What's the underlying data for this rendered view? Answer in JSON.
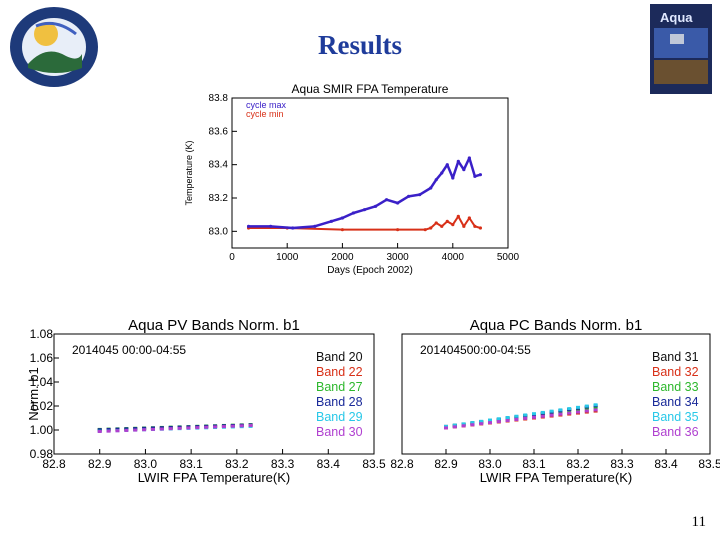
{
  "slide": {
    "title": "Results",
    "page_number": "11"
  },
  "logos": {
    "right_label": "Aqua"
  },
  "colors": {
    "blue": "#2a2ad0",
    "red": "#d83018",
    "green": "#2db82d",
    "navy": "#1a2a99",
    "cyan": "#28c8e8",
    "purple": "#b040d0",
    "title_blue": "#1f3c9b"
  },
  "chart_data": [
    {
      "type": "line",
      "title": "Aqua SMIR FPA Temperature",
      "xlabel": "Days (Epoch 2002)",
      "ylabel": "Temperature (K)",
      "xlim": [
        0,
        5000
      ],
      "ylim": [
        82.9,
        83.8
      ],
      "xticks": [
        "0",
        "1000",
        "2000",
        "3000",
        "4000",
        "5000"
      ],
      "yticks": [
        "83.0",
        "83.2",
        "83.4",
        "83.6",
        "83.8"
      ],
      "legend": [
        "cycle max",
        "cycle min"
      ],
      "series": [
        {
          "name": "cycle max",
          "color": "#3a20c8",
          "x": [
            300,
            700,
            1100,
            1500,
            1800,
            2000,
            2200,
            2400,
            2600,
            2800,
            3000,
            3200,
            3400,
            3600,
            3700,
            3800,
            3900,
            4000,
            4100,
            4200,
            4300,
            4400,
            4500
          ],
          "y": [
            83.03,
            83.03,
            83.02,
            83.03,
            83.06,
            83.08,
            83.11,
            83.13,
            83.15,
            83.19,
            83.17,
            83.21,
            83.22,
            83.26,
            83.31,
            83.35,
            83.4,
            83.32,
            83.42,
            83.37,
            83.44,
            83.33,
            83.34
          ]
        },
        {
          "name": "cycle min",
          "color": "#d83018",
          "x": [
            300,
            1000,
            2000,
            3000,
            3500,
            3600,
            3700,
            3800,
            3900,
            4000,
            4100,
            4200,
            4300,
            4400,
            4500
          ],
          "y": [
            83.02,
            83.02,
            83.01,
            83.01,
            83.01,
            83.02,
            83.05,
            83.03,
            83.06,
            83.04,
            83.09,
            83.03,
            83.08,
            83.03,
            83.02
          ]
        }
      ]
    },
    {
      "type": "scatter",
      "title": "Aqua PV Bands Norm. b1",
      "annotation": "2014045 00:00-04:55",
      "xlabel": "LWIR FPA Temperature(K)",
      "ylabel": "Norm. b1",
      "xlim": [
        82.8,
        83.5
      ],
      "ylim": [
        0.98,
        1.08
      ],
      "xticks": [
        "82.8",
        "82.9",
        "83.0",
        "83.1",
        "83.2",
        "83.3",
        "83.4",
        "83.5"
      ],
      "yticks": [
        "0.98",
        "1.00",
        "1.02",
        "1.04",
        "1.06",
        "1.08"
      ],
      "x_range": [
        82.9,
        83.23
      ],
      "series": [
        {
          "name": "Band 20",
          "color": "#111111",
          "y_start": 1.0,
          "y_end": 1.004
        },
        {
          "name": "Band 22",
          "color": "#d83018",
          "y_start": 1.0,
          "y_end": 1.004
        },
        {
          "name": "Band 27",
          "color": "#2db82d",
          "y_start": 1.001,
          "y_end": 1.005
        },
        {
          "name": "Band 28",
          "color": "#1a2a99",
          "y_start": 1.001,
          "y_end": 1.005
        },
        {
          "name": "Band 29",
          "color": "#28c8e8",
          "y_start": 1.0,
          "y_end": 1.004
        },
        {
          "name": "Band 30",
          "color": "#b040d0",
          "y_start": 1.0,
          "y_end": 1.005
        }
      ]
    },
    {
      "type": "scatter",
      "title": "Aqua PC Bands Norm. b1",
      "annotation": "201404500:00-04:55",
      "xlabel": "LWIR FPA Temperature(K)",
      "ylabel": "",
      "xlim": [
        82.8,
        83.5
      ],
      "ylim": [
        0.98,
        1.08
      ],
      "xticks": [
        "82.8",
        "82.9",
        "83.0",
        "83.1",
        "83.2",
        "83.3",
        "83.4",
        "83.5"
      ],
      "yticks": [],
      "x_range": [
        82.9,
        83.24
      ],
      "series": [
        {
          "name": "Band 31",
          "color": "#111111",
          "y_start": 1.003,
          "y_end": 1.02
        },
        {
          "name": "Band 32",
          "color": "#d83018",
          "y_start": 1.002,
          "y_end": 1.016
        },
        {
          "name": "Band 33",
          "color": "#2db82d",
          "y_start": 1.003,
          "y_end": 1.019
        },
        {
          "name": "Band 34",
          "color": "#1a2a99",
          "y_start": 1.003,
          "y_end": 1.021
        },
        {
          "name": "Band 35",
          "color": "#28c8e8",
          "y_start": 1.004,
          "y_end": 1.022
        },
        {
          "name": "Band 36",
          "color": "#b040d0",
          "y_start": 1.003,
          "y_end": 1.018
        }
      ]
    }
  ]
}
